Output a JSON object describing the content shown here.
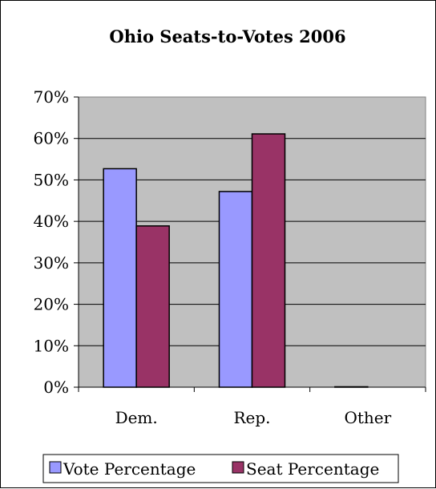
{
  "chart_data": {
    "type": "bar",
    "title": "Ohio Seats-to-Votes 2006",
    "categories": [
      "Dem.",
      "Rep.",
      "Other"
    ],
    "series": [
      {
        "name": "Vote Percentage",
        "values": [
          52.7,
          47.2,
          0.1
        ],
        "color": "#9999ff"
      },
      {
        "name": "Seat Percentage",
        "values": [
          38.9,
          61.1,
          0.0
        ],
        "color": "#993366"
      }
    ],
    "yticks": [
      "0%",
      "10%",
      "20%",
      "30%",
      "40%",
      "50%",
      "60%",
      "70%"
    ],
    "ylim": [
      0,
      70
    ],
    "plot_background": "#c0c0c0",
    "grid": true,
    "legend_position": "bottom"
  }
}
